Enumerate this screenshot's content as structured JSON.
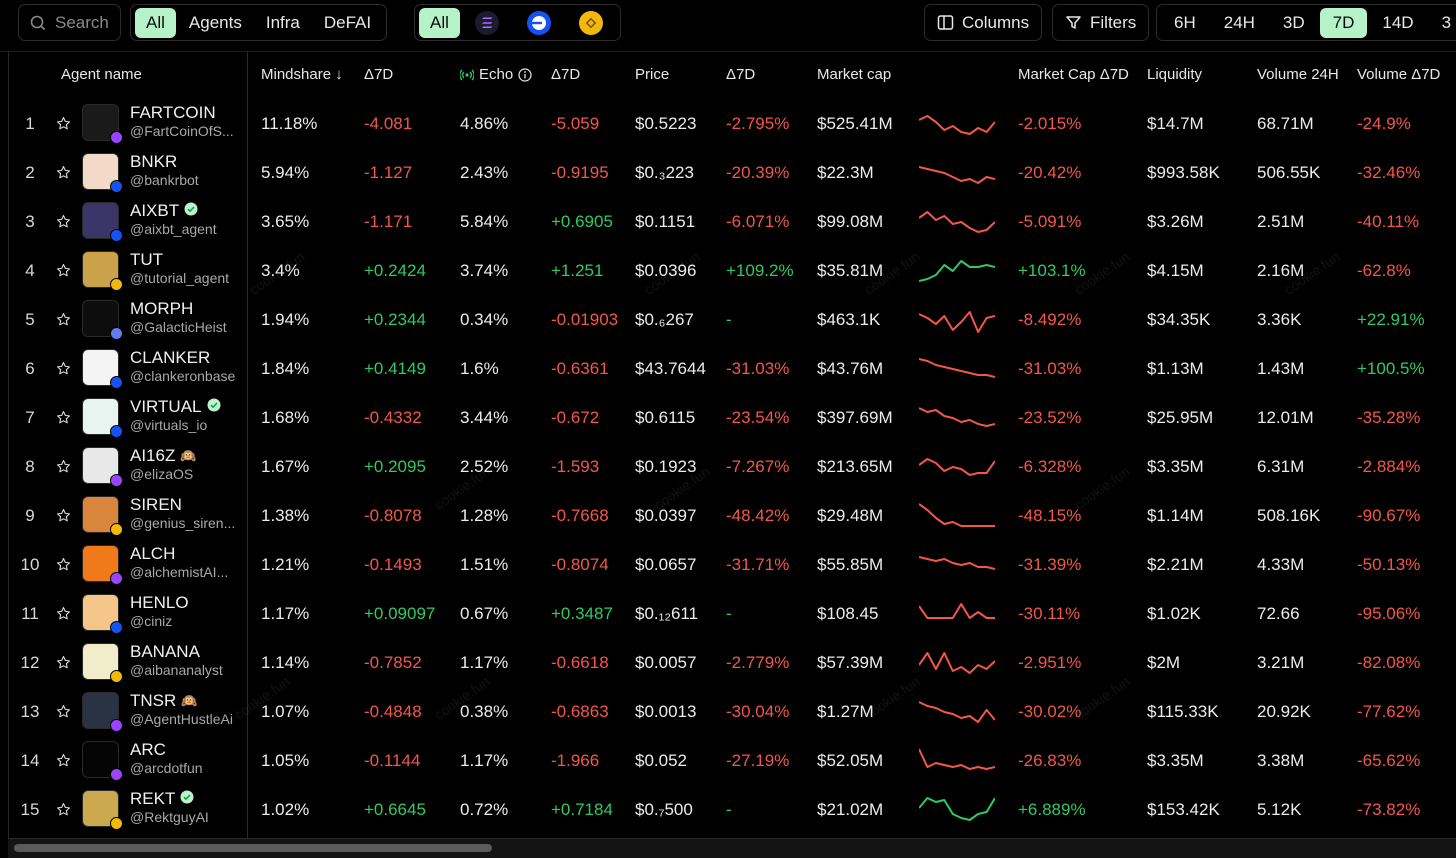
{
  "search": {
    "placeholder": "Search"
  },
  "categories": [
    "All",
    "Agents",
    "Infra",
    "DeFAI"
  ],
  "chains_all_label": "All",
  "buttons": {
    "columns": "Columns",
    "filters": "Filters"
  },
  "timeframes": [
    "6H",
    "24H",
    "3D",
    "7D",
    "14D",
    "3"
  ],
  "active_timeframe": "7D",
  "headers": {
    "agent_name": "Agent name",
    "mindshare": "Mindshare ↓",
    "mindshare_d7": "Δ7D",
    "echo": "Echo",
    "echo_d7": "Δ7D",
    "price": "Price",
    "price_d7": "Δ7D",
    "market_cap": "Market cap",
    "market_cap_d7": "Market Cap Δ7D",
    "liquidity": "Liquidity",
    "volume_24h": "Volume 24H",
    "volume_d7": "Volume Δ7D"
  },
  "watermark_text": "cookie.fun",
  "rows": [
    {
      "rank": "1",
      "name": "FARTCOIN",
      "handle": "@FartCoinOfS...",
      "verified": false,
      "emoji": "",
      "chain": "solana",
      "mind": "11.18%",
      "md7": "-4.081",
      "echo": "4.86%",
      "ed7": "-5.059",
      "price": "$0.5223",
      "pd7": "-2.795%",
      "mcap": "$525.41M",
      "spark": [
        12,
        8,
        14,
        22,
        18,
        24,
        26,
        20,
        24,
        14
      ],
      "trend": "down",
      "mcd7": "-2.015%",
      "liq": "$14.7M",
      "vol": "68.71M",
      "vd7": "-24.9%",
      "avatar_color": "#1a1a1a"
    },
    {
      "rank": "2",
      "name": "BNKR",
      "handle": "@bankrbot",
      "verified": false,
      "emoji": "",
      "chain": "base",
      "mind": "5.94%",
      "md7": "-1.127",
      "echo": "2.43%",
      "ed7": "-0.9195",
      "price": "$0.₃223",
      "pd7": "-20.39%",
      "mcap": "$22.3M",
      "spark": [
        10,
        12,
        14,
        16,
        20,
        24,
        22,
        26,
        20,
        22
      ],
      "trend": "down",
      "mcd7": "-20.42%",
      "liq": "$993.58K",
      "vol": "506.55K",
      "vd7": "-32.46%",
      "avatar_color": "#f3d9c8"
    },
    {
      "rank": "3",
      "name": "AIXBT",
      "handle": "@aixbt_agent",
      "verified": true,
      "emoji": "",
      "chain": "base",
      "mind": "3.65%",
      "md7": "-1.171",
      "echo": "5.84%",
      "ed7": "+0.6905",
      "price": "$0.1151",
      "pd7": "-6.071%",
      "mcap": "$99.08M",
      "spark": [
        12,
        6,
        14,
        10,
        18,
        16,
        22,
        26,
        24,
        16
      ],
      "trend": "down",
      "mcd7": "-5.091%",
      "liq": "$3.26M",
      "vol": "2.51M",
      "vd7": "-40.11%",
      "avatar_color": "#3a3566"
    },
    {
      "rank": "4",
      "name": "TUT",
      "handle": "@tutorial_agent",
      "verified": false,
      "emoji": "",
      "chain": "bnb",
      "mind": "3.4%",
      "md7": "+0.2424",
      "echo": "3.74%",
      "ed7": "+1.251",
      "price": "$0.0396",
      "pd7": "+109.2%",
      "mcap": "$35.81M",
      "spark": [
        26,
        24,
        20,
        10,
        16,
        6,
        12,
        12,
        10,
        12
      ],
      "trend": "up",
      "mcd7": "+103.1%",
      "liq": "$4.15M",
      "vol": "2.16M",
      "vd7": "-62.8%",
      "avatar_color": "#c9a24a"
    },
    {
      "rank": "5",
      "name": "MORPH",
      "handle": "@GalacticHeist",
      "verified": false,
      "emoji": "",
      "chain": "eth",
      "mind": "1.94%",
      "md7": "+0.2344",
      "echo": "0.34%",
      "ed7": "-0.01903",
      "price": "$0.₆267",
      "pd7": "-",
      "mcap": "$463.1K",
      "spark": [
        10,
        14,
        20,
        12,
        26,
        18,
        8,
        28,
        14,
        12
      ],
      "trend": "down",
      "mcd7": "-8.492%",
      "liq": "$34.35K",
      "vol": "3.36K",
      "vd7": "+22.91%",
      "avatar_color": "#0d0d0d"
    },
    {
      "rank": "6",
      "name": "CLANKER",
      "handle": "@clankeronbase",
      "verified": false,
      "emoji": "",
      "chain": "base",
      "mind": "1.84%",
      "md7": "+0.4149",
      "echo": "1.6%",
      "ed7": "-0.6361",
      "price": "$43.7644",
      "pd7": "-31.03%",
      "mcap": "$43.76M",
      "spark": [
        6,
        8,
        12,
        14,
        16,
        18,
        20,
        22,
        22,
        24
      ],
      "trend": "down",
      "mcd7": "-31.03%",
      "liq": "$1.13M",
      "vol": "1.43M",
      "vd7": "+100.5%",
      "avatar_color": "#f4f4f4"
    },
    {
      "rank": "7",
      "name": "VIRTUAL",
      "handle": "@virtuals_io",
      "verified": true,
      "emoji": "",
      "chain": "base",
      "mind": "1.68%",
      "md7": "-0.4332",
      "echo": "3.44%",
      "ed7": "-0.672",
      "price": "$0.6115",
      "pd7": "-23.54%",
      "mcap": "$397.69M",
      "spark": [
        6,
        10,
        8,
        14,
        16,
        20,
        18,
        22,
        24,
        22
      ],
      "trend": "down",
      "mcd7": "-23.52%",
      "liq": "$25.95M",
      "vol": "12.01M",
      "vd7": "-35.28%",
      "avatar_color": "#e6f5ef"
    },
    {
      "rank": "8",
      "name": "AI16Z",
      "handle": "@elizaOS",
      "verified": false,
      "emoji": "🙉",
      "chain": "solana",
      "mind": "1.67%",
      "md7": "+0.2095",
      "echo": "2.52%",
      "ed7": "-1.593",
      "price": "$0.1923",
      "pd7": "-7.267%",
      "mcap": "$213.65M",
      "spark": [
        14,
        8,
        12,
        20,
        16,
        18,
        24,
        22,
        22,
        10
      ],
      "trend": "down",
      "mcd7": "-6.328%",
      "liq": "$3.35M",
      "vol": "6.31M",
      "vd7": "-2.884%",
      "avatar_color": "#e8e8e8"
    },
    {
      "rank": "9",
      "name": "SIREN",
      "handle": "@genius_siren...",
      "verified": false,
      "emoji": "",
      "chain": "bnb",
      "mind": "1.38%",
      "md7": "-0.8078",
      "echo": "1.28%",
      "ed7": "-0.7668",
      "price": "$0.0397",
      "pd7": "-48.42%",
      "mcap": "$29.48M",
      "spark": [
        4,
        10,
        18,
        24,
        22,
        26,
        26,
        26,
        26,
        26
      ],
      "trend": "down",
      "mcd7": "-48.15%",
      "liq": "$1.14M",
      "vol": "508.16K",
      "vd7": "-90.67%",
      "avatar_color": "#d9853b"
    },
    {
      "rank": "10",
      "name": "ALCH",
      "handle": "@alchemistAI...",
      "verified": false,
      "emoji": "",
      "chain": "solana",
      "mind": "1.21%",
      "md7": "-0.1493",
      "echo": "1.51%",
      "ed7": "-0.8074",
      "price": "$0.0657",
      "pd7": "-31.71%",
      "mcap": "$55.85M",
      "spark": [
        8,
        10,
        12,
        10,
        14,
        16,
        14,
        18,
        18,
        20
      ],
      "trend": "down",
      "mcd7": "-31.39%",
      "liq": "$2.21M",
      "vol": "4.33M",
      "vd7": "-50.13%",
      "avatar_color": "#f07a1a"
    },
    {
      "rank": "11",
      "name": "HENLO",
      "handle": "@ciniz",
      "verified": false,
      "emoji": "",
      "chain": "base",
      "mind": "1.17%",
      "md7": "+0.09097",
      "echo": "0.67%",
      "ed7": "+0.3487",
      "price": "$0.₁₂611",
      "pd7": "-",
      "mcap": "$108.45",
      "spark": [
        8,
        20,
        20,
        20,
        20,
        6,
        20,
        14,
        20,
        20
      ],
      "trend": "down",
      "mcd7": "-30.11%",
      "liq": "$1.02K",
      "vol": "72.66",
      "vd7": "-95.06%",
      "avatar_color": "#f5c58a"
    },
    {
      "rank": "12",
      "name": "BANANA",
      "handle": "@aibananalyst",
      "verified": false,
      "emoji": "",
      "chain": "bnb",
      "mind": "1.14%",
      "md7": "-0.7852",
      "echo": "1.17%",
      "ed7": "-0.6618",
      "price": "$0.0057",
      "pd7": "-2.779%",
      "mcap": "$57.39M",
      "spark": [
        18,
        6,
        22,
        6,
        24,
        20,
        26,
        18,
        22,
        14
      ],
      "trend": "down",
      "mcd7": "-2.951%",
      "liq": "$2M",
      "vol": "3.21M",
      "vd7": "-82.08%",
      "avatar_color": "#f1ecc9"
    },
    {
      "rank": "13",
      "name": "TNSR",
      "handle": "@AgentHustleAi",
      "verified": false,
      "emoji": "🙉",
      "chain": "solana",
      "mind": "1.07%",
      "md7": "-0.4848",
      "echo": "0.38%",
      "ed7": "-0.6863",
      "price": "$0.0013",
      "pd7": "-30.04%",
      "mcap": "$1.27M",
      "spark": [
        6,
        10,
        12,
        16,
        18,
        22,
        20,
        26,
        14,
        24
      ],
      "trend": "down",
      "mcd7": "-30.02%",
      "liq": "$115.33K",
      "vol": "20.92K",
      "vd7": "-77.62%",
      "avatar_color": "#2a3344"
    },
    {
      "rank": "14",
      "name": "ARC",
      "handle": "@arcdotfun",
      "verified": false,
      "emoji": "",
      "chain": "solana",
      "mind": "1.05%",
      "md7": "-0.1144",
      "echo": "1.17%",
      "ed7": "-1.966",
      "price": "$0.052",
      "pd7": "-27.19%",
      "mcap": "$52.05M",
      "spark": [
        4,
        22,
        18,
        20,
        22,
        20,
        24,
        22,
        24,
        22
      ],
      "trend": "down",
      "mcd7": "-26.83%",
      "liq": "$3.35M",
      "vol": "3.38M",
      "vd7": "-65.62%",
      "avatar_color": "#050505"
    },
    {
      "rank": "15",
      "name": "REKT",
      "handle": "@RektguyAI",
      "verified": true,
      "emoji": "",
      "chain": "bnb",
      "mind": "1.02%",
      "md7": "+0.6645",
      "echo": "0.72%",
      "ed7": "+0.7184",
      "price": "$0.₇500",
      "pd7": "-",
      "mcap": "$21.02M",
      "spark": [
        14,
        4,
        8,
        6,
        20,
        24,
        26,
        20,
        18,
        4
      ],
      "trend": "up",
      "mcd7": "+6.889%",
      "liq": "$153.42K",
      "vol": "5.12K",
      "vd7": "-73.82%",
      "avatar_color": "#c9a84e"
    }
  ],
  "colors": {
    "accent": "#b5f2c8",
    "negative": "#f2574a",
    "positive": "#2fca62",
    "solana": "#9945ff",
    "base": "#1652f0",
    "bnb": "#f0b90b",
    "eth": "#627eea"
  }
}
